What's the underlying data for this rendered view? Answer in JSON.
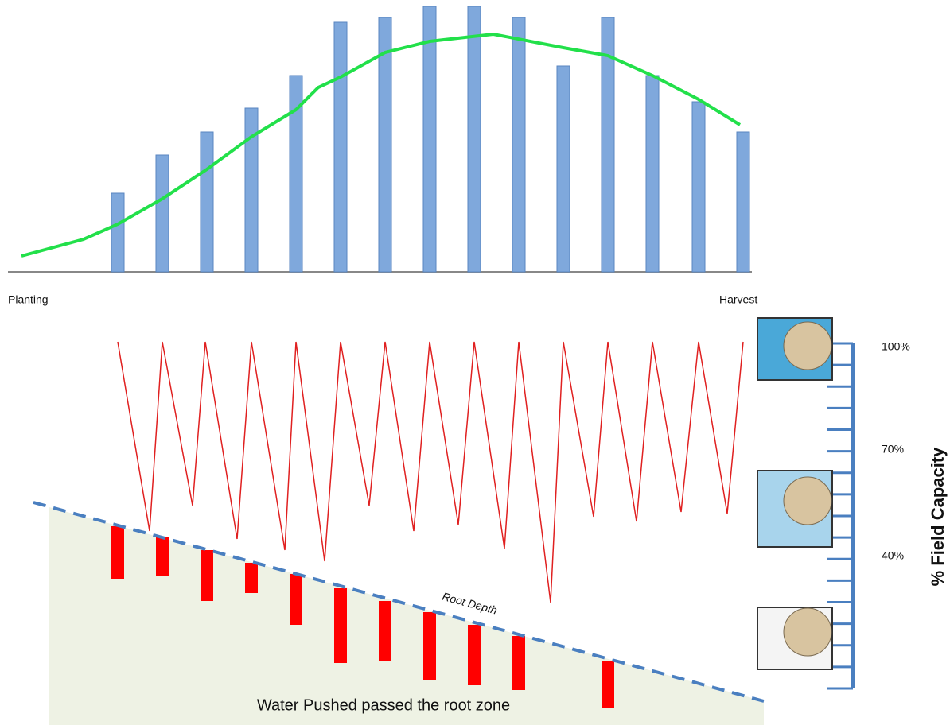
{
  "labels": {
    "start": "Planting",
    "end": "Harvest"
  },
  "axis": {
    "title": "% Field Capacity",
    "ticks": [
      "100%",
      "70%",
      "40%"
    ]
  },
  "annotations": {
    "root_depth": "Root Depth",
    "caption": "Water Pushed passed the root zone"
  }
}
